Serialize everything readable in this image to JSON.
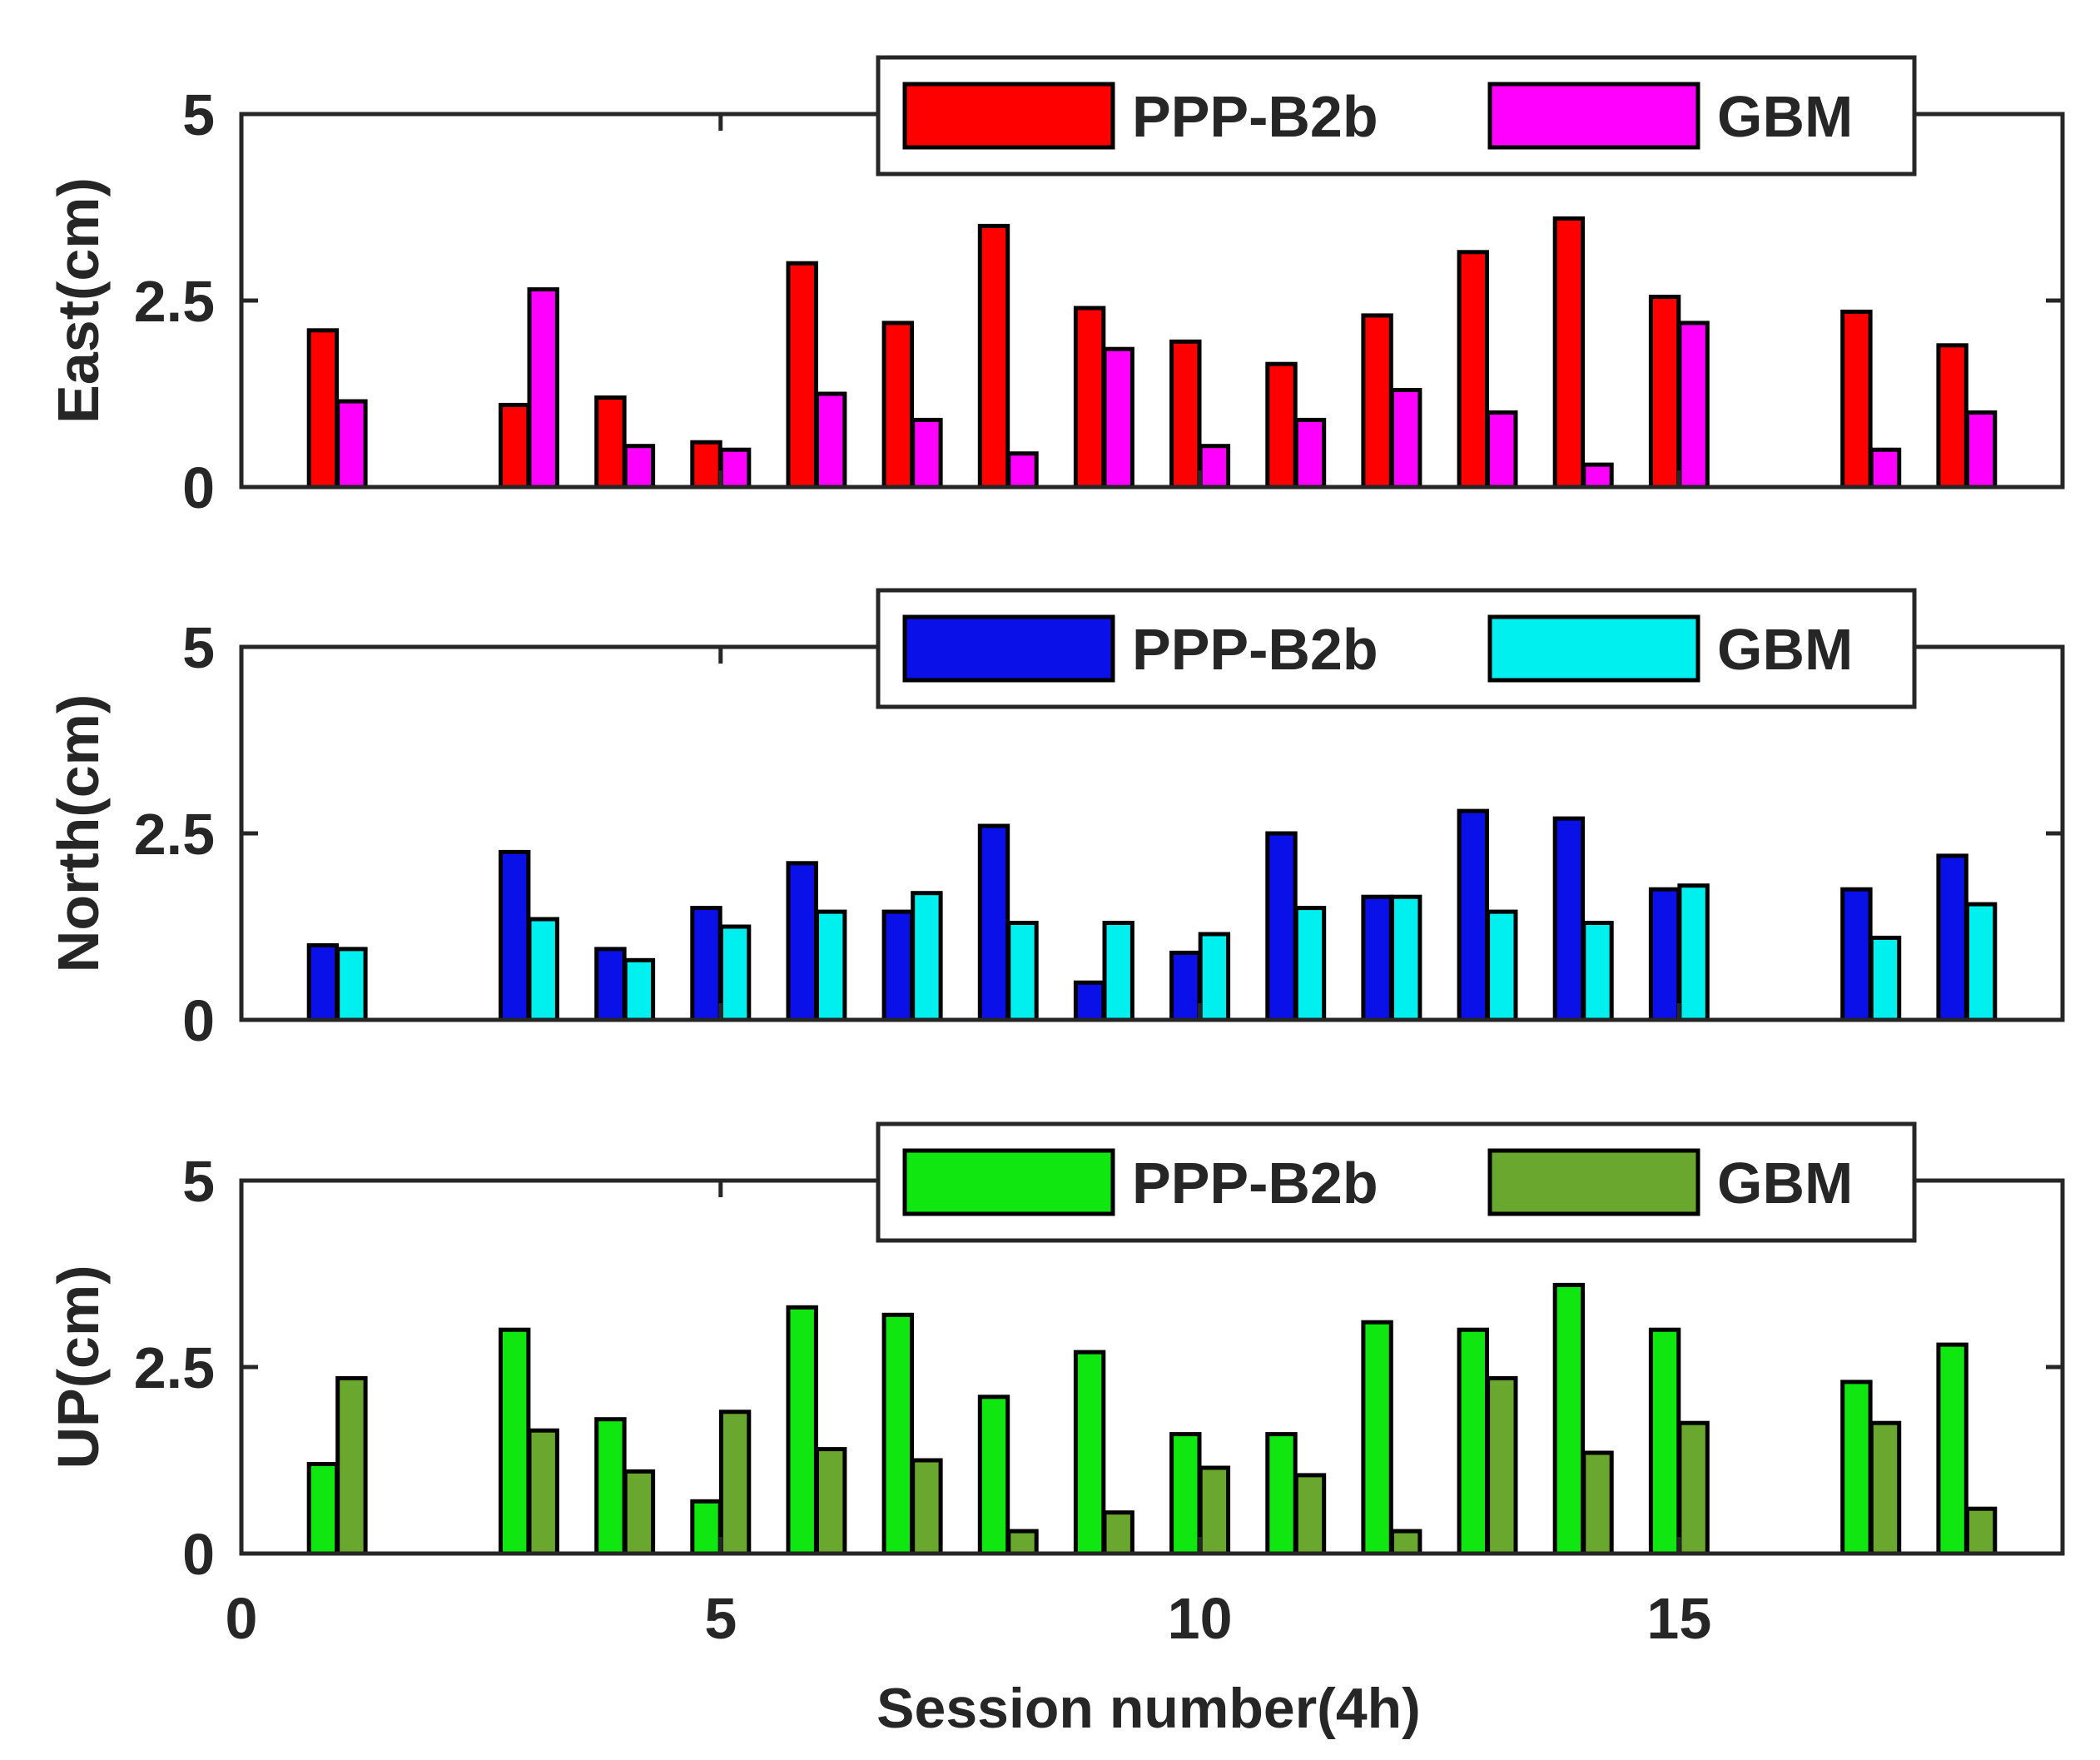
{
  "figure": {
    "xlabel": "Session number(4h)"
  },
  "chart_data": [
    {
      "type": "bar",
      "ylabel": "East(cm)",
      "xlim": [
        0,
        19
      ],
      "ylim": [
        0,
        5
      ],
      "xticks": [
        0,
        5,
        10,
        15
      ],
      "yticks": [
        0,
        2.5,
        5
      ],
      "ytick_labels": [
        "0",
        "2.5",
        "5"
      ],
      "legend": "top-right",
      "categories": [
        1,
        2,
        3,
        4,
        5,
        6,
        7,
        8,
        9,
        10,
        11,
        12,
        13,
        14,
        15,
        16,
        17,
        18
      ],
      "series": [
        {
          "name": "PPP-B2b",
          "color": "#ff0000",
          "values": [
            2.1,
            null,
            1.1,
            1.2,
            0.6,
            3.0,
            2.2,
            3.5,
            2.4,
            1.95,
            1.65,
            2.3,
            3.15,
            3.6,
            2.55,
            null,
            2.35,
            1.9
          ]
        },
        {
          "name": "GBM",
          "color": "#ff00ff",
          "values": [
            1.15,
            null,
            2.65,
            0.55,
            0.5,
            1.25,
            0.9,
            0.45,
            1.85,
            0.55,
            0.9,
            1.3,
            1.0,
            0.3,
            2.2,
            null,
            0.5,
            1.0
          ]
        }
      ]
    },
    {
      "type": "bar",
      "ylabel": "North(cm)",
      "xlim": [
        0,
        19
      ],
      "ylim": [
        0,
        5
      ],
      "xticks": [
        0,
        5,
        10,
        15
      ],
      "yticks": [
        0,
        2.5,
        5
      ],
      "ytick_labels": [
        "0",
        "2.5",
        "5"
      ],
      "legend": "top-right",
      "categories": [
        1,
        2,
        3,
        4,
        5,
        6,
        7,
        8,
        9,
        10,
        11,
        12,
        13,
        14,
        15,
        16,
        17,
        18
      ],
      "series": [
        {
          "name": "PPP-B2b",
          "color": "#0a10e8",
          "values": [
            1.0,
            null,
            2.25,
            0.95,
            1.5,
            2.1,
            1.45,
            2.6,
            0.5,
            0.9,
            2.5,
            1.65,
            2.8,
            2.7,
            1.75,
            null,
            1.75,
            2.2
          ]
        },
        {
          "name": "GBM",
          "color": "#00f0f0",
          "values": [
            0.95,
            null,
            1.35,
            0.8,
            1.25,
            1.45,
            1.7,
            1.3,
            1.3,
            1.15,
            1.5,
            1.65,
            1.45,
            1.3,
            1.8,
            null,
            1.1,
            1.55
          ]
        }
      ]
    },
    {
      "type": "bar",
      "ylabel": "UP(cm)",
      "xlim": [
        0,
        19
      ],
      "ylim": [
        0,
        5
      ],
      "xticks": [
        0,
        5,
        10,
        15
      ],
      "xtick_labels": [
        "0",
        "5",
        "10",
        "15"
      ],
      "yticks": [
        0,
        2.5,
        5
      ],
      "ytick_labels": [
        "0",
        "2.5",
        "5"
      ],
      "legend": "top-right",
      "categories": [
        1,
        2,
        3,
        4,
        5,
        6,
        7,
        8,
        9,
        10,
        11,
        12,
        13,
        14,
        15,
        16,
        17,
        18
      ],
      "series": [
        {
          "name": "PPP-B2b",
          "color": "#10e610",
          "values": [
            1.2,
            null,
            3.0,
            1.8,
            0.7,
            3.3,
            3.2,
            2.1,
            2.7,
            1.6,
            1.6,
            3.1,
            3.0,
            3.6,
            3.0,
            null,
            2.3,
            2.8
          ]
        },
        {
          "name": "GBM",
          "color": "#6aa72e",
          "values": [
            2.35,
            null,
            1.65,
            1.1,
            1.9,
            1.4,
            1.25,
            0.3,
            0.55,
            1.15,
            1.05,
            0.3,
            2.35,
            1.35,
            1.75,
            null,
            1.75,
            0.6
          ]
        }
      ]
    }
  ]
}
